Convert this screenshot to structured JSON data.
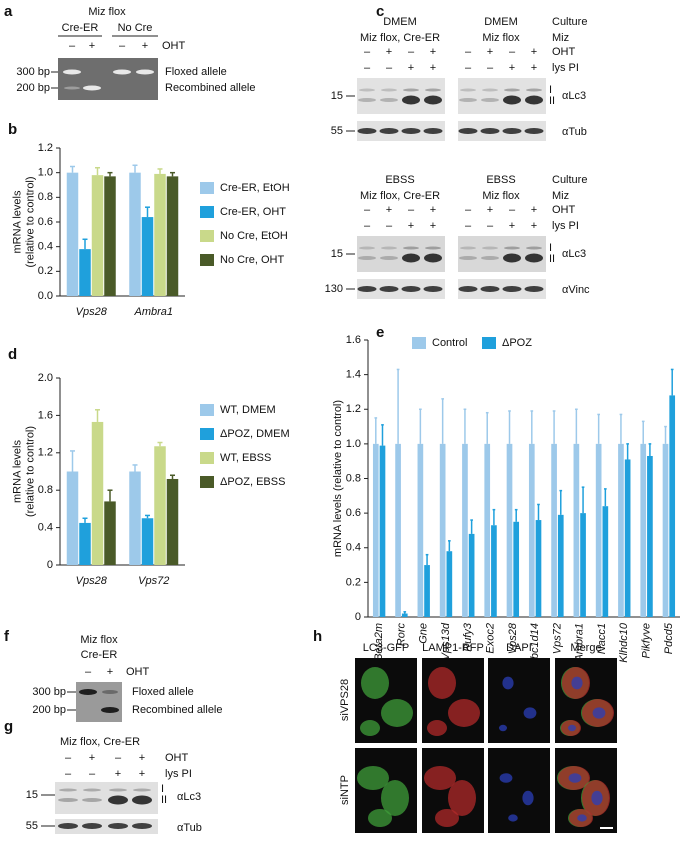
{
  "chart_data": [
    {
      "type": "bar",
      "panel": "b",
      "ylabel": [
        "mRNA levels",
        "(relative to control)"
      ],
      "categories": [
        "Vps28",
        "Ambra1"
      ],
      "series": [
        {
          "name": "Cre-ER, EtOH",
          "color": "#9dc9ea",
          "values": [
            1.0,
            1.0
          ],
          "errors": [
            0.05,
            0.06
          ]
        },
        {
          "name": "Cre-ER, OHT",
          "color": "#1fa0dc",
          "values": [
            0.38,
            0.64
          ],
          "errors": [
            0.08,
            0.08
          ]
        },
        {
          "name": "No Cre, EtOH",
          "color": "#c9d98a",
          "values": [
            0.98,
            0.99
          ],
          "errors": [
            0.06,
            0.04
          ]
        },
        {
          "name": "No Cre, OHT",
          "color": "#4a5a28",
          "values": [
            0.97,
            0.97
          ],
          "errors": [
            0.03,
            0.03
          ]
        }
      ],
      "ylim": [
        0,
        1.2
      ],
      "yticks": [
        {
          "value": 0,
          "label": "0.0"
        },
        0.2,
        0.4,
        0.6,
        0.8,
        {
          "value": 1,
          "label": "1.0"
        },
        1.2
      ],
      "legend": "right"
    },
    {
      "type": "bar",
      "panel": "d",
      "ylabel": [
        "mRNA levels",
        "(relative to control)"
      ],
      "categories": [
        "Vps28",
        "Vps72"
      ],
      "series": [
        {
          "name": "WT, DMEM",
          "color": "#9dc9ea",
          "values": [
            1.0,
            1.0
          ],
          "errors": [
            0.22,
            0.07
          ]
        },
        {
          "name": "ΔPOZ, DMEM",
          "color": "#1fa0dc",
          "values": [
            0.45,
            0.5
          ],
          "errors": [
            0.05,
            0.03
          ]
        },
        {
          "name": "WT, EBSS",
          "color": "#c9d98a",
          "values": [
            1.53,
            1.27
          ],
          "errors": [
            0.13,
            0.04
          ]
        },
        {
          "name": "ΔPOZ, EBSS",
          "color": "#4a5a28",
          "values": [
            0.68,
            0.92
          ],
          "errors": [
            0.12,
            0.04
          ]
        }
      ],
      "ylim": [
        0,
        2
      ],
      "yticks": [
        0,
        0.4,
        0.8,
        1.2,
        1.6,
        {
          "value": 2,
          "label": "2.0"
        }
      ],
      "legend": "right"
    },
    {
      "type": "bar",
      "panel": "e",
      "ylabel": [
        "mRNA levels (relative to control)"
      ],
      "categories": [
        "Beta2m",
        "Rorc",
        "Gne",
        "Vps13d",
        "Rufy3",
        "Exoc2",
        "Vps28",
        "Tbc1d14",
        "Vps72",
        "Ambra1",
        "Nacc1",
        "Klhdc10",
        "Pikfyve",
        "Pdcd5"
      ],
      "series": [
        {
          "name": "Control",
          "color": "#9dc9ea",
          "values": [
            1,
            1,
            1,
            1,
            1,
            1,
            1,
            1,
            1,
            1,
            1,
            1,
            1,
            1
          ],
          "errors": [
            0.15,
            0.43,
            0.2,
            0.26,
            0.2,
            0.18,
            0.19,
            0.19,
            0.19,
            0.2,
            0.17,
            0.17,
            0.13,
            0.1
          ]
        },
        {
          "name": "ΔPOZ",
          "color": "#1fa0dc",
          "values": [
            0.99,
            0.02,
            0.3,
            0.38,
            0.48,
            0.53,
            0.55,
            0.56,
            0.59,
            0.6,
            0.64,
            0.91,
            0.93,
            1.28
          ],
          "errors": [
            0.12,
            0.01,
            0.06,
            0.06,
            0.08,
            0.09,
            0.07,
            0.09,
            0.14,
            0.15,
            0.1,
            0.09,
            0.07,
            0.15
          ]
        }
      ],
      "ylim": [
        0,
        1.6
      ],
      "yticks": [
        0,
        0.2,
        0.4,
        0.6,
        0.8,
        {
          "value": 1,
          "label": "1.0"
        },
        1.2,
        1.4,
        1.6
      ],
      "legend": "top"
    }
  ],
  "panels": {
    "a": {
      "letter": "a",
      "header": "Miz flox",
      "groups": [
        "Cre-ER",
        "No Cre"
      ],
      "treatment": "OHT",
      "signs": [
        "–",
        "+",
        "–",
        "+"
      ],
      "markers": [
        "300 bp",
        "200 bp"
      ],
      "bands": [
        "Floxed allele",
        "Recombined allele"
      ]
    },
    "c": {
      "letter": "c",
      "blocks": [
        {
          "medium": [
            "DMEM",
            "DMEM"
          ],
          "genotype": [
            "Miz flox, Cre-ER",
            "Miz flox"
          ],
          "row_titles": [
            "Culture",
            "Miz",
            "OHT",
            "lys PI"
          ],
          "oht": [
            "–",
            "+",
            "–",
            "+",
            "–",
            "+",
            "–",
            "+"
          ],
          "lys": [
            "–",
            "–",
            "+",
            "+",
            "–",
            "–",
            "+",
            "+"
          ],
          "markers": [
            "15",
            "55"
          ],
          "forms": [
            "I",
            "II"
          ],
          "antibodies": [
            "αLc3",
            "αTub"
          ]
        },
        {
          "medium": [
            "EBSS",
            "EBSS"
          ],
          "genotype": [
            "Miz flox, Cre-ER",
            "Miz flox"
          ],
          "row_titles": [
            "Culture",
            "Miz",
            "OHT",
            "lys PI"
          ],
          "oht": [
            "–",
            "+",
            "–",
            "+",
            "–",
            "+",
            "–",
            "+"
          ],
          "lys": [
            "–",
            "–",
            "+",
            "+",
            "–",
            "–",
            "+",
            "+"
          ],
          "markers": [
            "15",
            "130"
          ],
          "forms": [
            "I",
            "II"
          ],
          "antibodies": [
            "αLc3",
            "αVinc"
          ]
        }
      ]
    },
    "f": {
      "letter": "f",
      "header": [
        "Miz flox",
        "Cre-ER"
      ],
      "treatment": "OHT",
      "signs": [
        "–",
        "+"
      ],
      "markers": [
        "300 bp",
        "200 bp"
      ],
      "bands": [
        "Floxed allele",
        "Recombined allele"
      ]
    },
    "g": {
      "letter": "g",
      "header": "Miz flox, Cre-ER",
      "row_titles": [
        "OHT",
        "lys PI"
      ],
      "oht": [
        "–",
        "+",
        "–",
        "+"
      ],
      "lys": [
        "–",
        "–",
        "+",
        "+"
      ],
      "markers": [
        "15",
        "55"
      ],
      "forms": [
        "I",
        "II"
      ],
      "antibodies": [
        "αLc3",
        "αTub"
      ]
    },
    "h": {
      "letter": "h",
      "columns": [
        "LC3-GFP",
        "LAMP1-RFP",
        "DAPI",
        "Merge"
      ],
      "rows": [
        "siVPS28",
        "siNTP"
      ]
    }
  }
}
